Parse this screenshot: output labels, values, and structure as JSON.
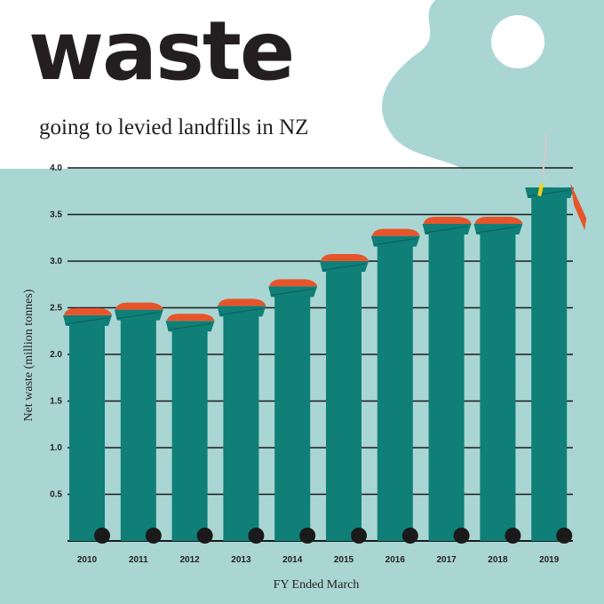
{
  "header": {
    "title": "waste",
    "subtitle": "going to levied landfills in NZ"
  },
  "colors": {
    "background": "#a9d6d3",
    "bar": "#0f7f78",
    "lid": "#e8542a",
    "gridline": "#1a1a1a",
    "wheel": "#1a1a1a"
  },
  "chart_data": {
    "type": "bar",
    "title": "waste",
    "subtitle": "going to levied landfills in NZ",
    "xlabel": "FY Ended March",
    "ylabel": "Net waste (million tonnes)",
    "categories": [
      "2010",
      "2011",
      "2012",
      "2013",
      "2014",
      "2015",
      "2016",
      "2017",
      "2018",
      "2019"
    ],
    "values": [
      2.42,
      2.48,
      2.36,
      2.52,
      2.73,
      3.0,
      3.27,
      3.4,
      3.4,
      3.79
    ],
    "ylim": [
      0,
      4.0
    ],
    "yticks": [
      "0.5",
      "1.0",
      "1.5",
      "2.0",
      "2.5",
      "3.0",
      "3.5",
      "4.0"
    ],
    "grid": true,
    "legend": "none"
  }
}
